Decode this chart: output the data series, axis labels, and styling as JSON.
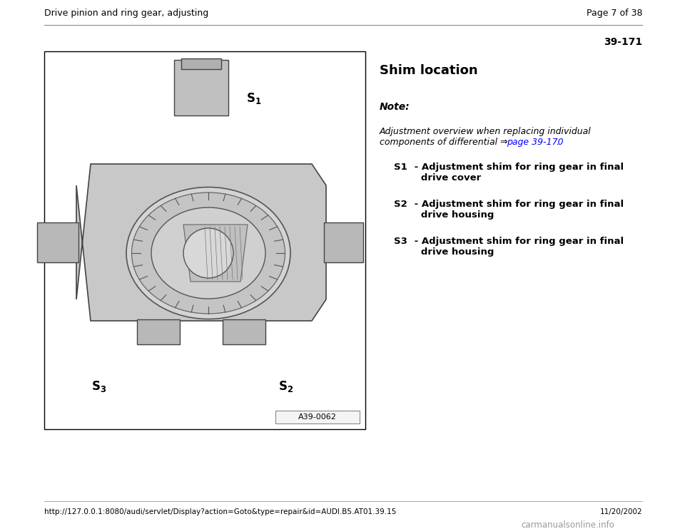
{
  "page_title": "Drive pinion and ring gear, adjusting",
  "page_number": "Page 7 of 38",
  "section_number": "39-171",
  "section_heading": "Shim location",
  "note_label": "Note:",
  "note_line1": "Adjustment overview when replacing individual",
  "note_line2_pre": "components of differential ⇒ ",
  "note_link": "page 39-170",
  "note_end": " .",
  "items": [
    {
      "label": "S1",
      "desc_line1": " - Adjustment shim for ring gear in final",
      "desc_line2": "   drive cover"
    },
    {
      "label": "S2",
      "desc_line1": " - Adjustment shim for ring gear in final",
      "desc_line2": "   drive housing"
    },
    {
      "label": "S3",
      "desc_line1": " - Adjustment shim for ring gear in final",
      "desc_line2": "   drive housing"
    }
  ],
  "figure_caption": "A39-0062",
  "footer_url": "http://127.0.0.1:8080/audi/servlet/Display?action=Goto&type=repair&id=AUDI.B5.AT01.39.15",
  "footer_date": "11/20/2002",
  "footer_watermark": "carmanualsonline.info",
  "bg_color": "#ffffff",
  "text_color": "#000000",
  "link_color": "#0000ff",
  "header_line_color": "#888888",
  "fig_border_color": "#000000",
  "caption_border_color": "#aaaaaa",
  "page_title_fontsize": 9,
  "section_num_fontsize": 10,
  "heading_fontsize": 13,
  "note_label_fontsize": 10,
  "note_text_fontsize": 9,
  "item_fontsize": 9.5,
  "footer_fontsize": 7.5
}
